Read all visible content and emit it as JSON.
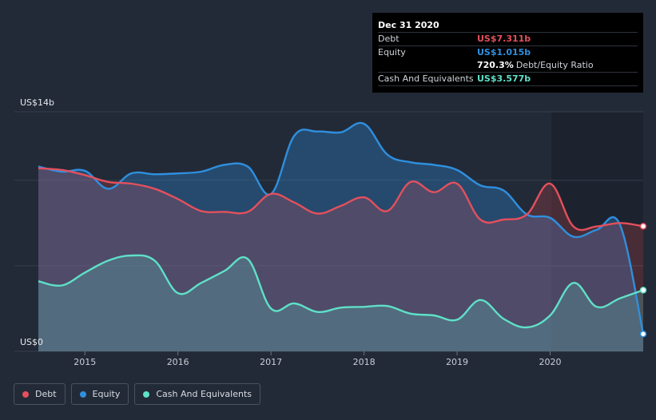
{
  "chart_data": {
    "type": "area",
    "y_axis": {
      "top_label": "US$14b",
      "bottom_label": "US$0",
      "ylim": [
        0,
        14
      ]
    },
    "x_ticks": [
      "2015",
      "2016",
      "2017",
      "2018",
      "2019",
      "2020"
    ],
    "grid": true,
    "series": [
      {
        "name": "Debt",
        "color": "#e4505d",
        "points": [
          [
            2014.5,
            10.7
          ],
          [
            2014.75,
            10.6
          ],
          [
            2015.0,
            10.3
          ],
          [
            2015.25,
            9.9
          ],
          [
            2015.5,
            9.8
          ],
          [
            2015.75,
            9.5
          ],
          [
            2016.0,
            8.9
          ],
          [
            2016.25,
            8.2
          ],
          [
            2016.5,
            8.15
          ],
          [
            2016.75,
            8.15
          ],
          [
            2017.0,
            9.2
          ],
          [
            2017.25,
            8.7
          ],
          [
            2017.5,
            8.05
          ],
          [
            2017.75,
            8.5
          ],
          [
            2018.0,
            9.0
          ],
          [
            2018.25,
            8.2
          ],
          [
            2018.5,
            9.9
          ],
          [
            2018.75,
            9.3
          ],
          [
            2019.0,
            9.8
          ],
          [
            2019.25,
            7.7
          ],
          [
            2019.5,
            7.7
          ],
          [
            2019.75,
            8.0
          ],
          [
            2020.0,
            9.8
          ],
          [
            2020.25,
            7.3
          ],
          [
            2020.5,
            7.3
          ],
          [
            2020.75,
            7.5
          ],
          [
            2021.0,
            7.311
          ]
        ]
      },
      {
        "name": "Equity",
        "color": "#2f8fdf",
        "points": [
          [
            2014.5,
            10.8
          ],
          [
            2014.75,
            10.5
          ],
          [
            2015.0,
            10.55
          ],
          [
            2015.25,
            9.5
          ],
          [
            2015.5,
            10.4
          ],
          [
            2015.75,
            10.35
          ],
          [
            2016.0,
            10.4
          ],
          [
            2016.25,
            10.5
          ],
          [
            2016.5,
            10.9
          ],
          [
            2016.75,
            10.8
          ],
          [
            2017.0,
            9.2
          ],
          [
            2017.25,
            12.6
          ],
          [
            2017.5,
            12.85
          ],
          [
            2017.75,
            12.8
          ],
          [
            2018.0,
            13.3
          ],
          [
            2018.25,
            11.5
          ],
          [
            2018.5,
            11.05
          ],
          [
            2018.75,
            10.9
          ],
          [
            2019.0,
            10.6
          ],
          [
            2019.25,
            9.7
          ],
          [
            2019.5,
            9.4
          ],
          [
            2019.75,
            8.0
          ],
          [
            2020.0,
            7.8
          ],
          [
            2020.25,
            6.7
          ],
          [
            2020.5,
            7.1
          ],
          [
            2020.75,
            7.4
          ],
          [
            2021.0,
            1.015
          ]
        ]
      },
      {
        "name": "Cash And Equivalents",
        "color": "#5fe0c8",
        "points": [
          [
            2014.5,
            4.1
          ],
          [
            2014.75,
            3.85
          ],
          [
            2015.0,
            4.6
          ],
          [
            2015.25,
            5.3
          ],
          [
            2015.5,
            5.6
          ],
          [
            2015.75,
            5.3
          ],
          [
            2016.0,
            3.4
          ],
          [
            2016.25,
            4.0
          ],
          [
            2016.5,
            4.7
          ],
          [
            2016.75,
            5.4
          ],
          [
            2017.0,
            2.5
          ],
          [
            2017.25,
            2.8
          ],
          [
            2017.5,
            2.3
          ],
          [
            2017.75,
            2.55
          ],
          [
            2018.0,
            2.6
          ],
          [
            2018.25,
            2.65
          ],
          [
            2018.5,
            2.2
          ],
          [
            2018.75,
            2.1
          ],
          [
            2019.0,
            1.85
          ],
          [
            2019.25,
            3.0
          ],
          [
            2019.5,
            1.9
          ],
          [
            2019.75,
            1.4
          ],
          [
            2020.0,
            2.1
          ],
          [
            2020.25,
            4.0
          ],
          [
            2020.5,
            2.6
          ],
          [
            2020.75,
            3.1
          ],
          [
            2021.0,
            3.577
          ]
        ]
      }
    ]
  },
  "tooltip": {
    "date": "Dec 31 2020",
    "rows": [
      {
        "label": "Debt",
        "value": "US$7.311b",
        "color": "#e4505d"
      },
      {
        "label": "Equity",
        "value": "US$1.015b",
        "color": "#2f8fdf"
      },
      {
        "label": "",
        "value": "720.3%",
        "sub": "Debt/Equity Ratio",
        "color": "#ffffff"
      },
      {
        "label": "Cash And Equivalents",
        "value": "US$3.577b",
        "color": "#5fe0c8"
      }
    ]
  },
  "legend": [
    {
      "label": "Debt",
      "color": "#e4505d"
    },
    {
      "label": "Equity",
      "color": "#2f8fdf"
    },
    {
      "label": "Cash And Equivalents",
      "color": "#5fe0c8"
    }
  ]
}
